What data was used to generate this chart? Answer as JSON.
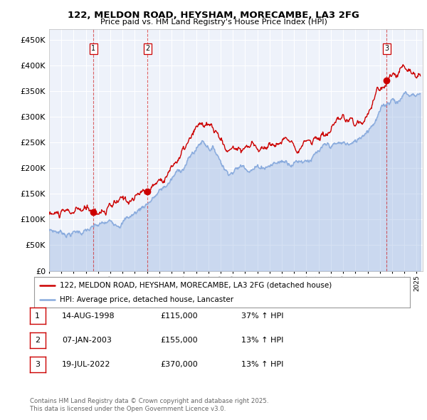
{
  "title": "122, MELDON ROAD, HEYSHAM, MORECAMBE, LA3 2FG",
  "subtitle": "Price paid vs. HM Land Registry's House Price Index (HPI)",
  "ylim": [
    0,
    470000
  ],
  "yticks": [
    0,
    50000,
    100000,
    150000,
    200000,
    250000,
    300000,
    350000,
    400000,
    450000
  ],
  "background_color": "#ffffff",
  "plot_bg_color": "#eef2fa",
  "grid_color": "#ffffff",
  "legend_label_red": "122, MELDON ROAD, HEYSHAM, MORECAMBE, LA3 2FG (detached house)",
  "legend_label_blue": "HPI: Average price, detached house, Lancaster",
  "red_color": "#cc0000",
  "blue_color": "#88aadd",
  "sale_points": [
    {
      "date_num": 1998.62,
      "price": 115000,
      "label": "1"
    },
    {
      "date_num": 2003.03,
      "price": 155000,
      "label": "2"
    },
    {
      "date_num": 2022.55,
      "price": 370000,
      "label": "3"
    }
  ],
  "footer": "Contains HM Land Registry data © Crown copyright and database right 2025.\nThis data is licensed under the Open Government Licence v3.0.",
  "table_rows": [
    {
      "num": "1",
      "date": "14-AUG-1998",
      "price": "£115,000",
      "change": "37% ↑ HPI"
    },
    {
      "num": "2",
      "date": "07-JAN-2003",
      "price": "£155,000",
      "change": "13% ↑ HPI"
    },
    {
      "num": "3",
      "date": "19-JUL-2022",
      "price": "£370,000",
      "change": "13% ↑ HPI"
    }
  ]
}
